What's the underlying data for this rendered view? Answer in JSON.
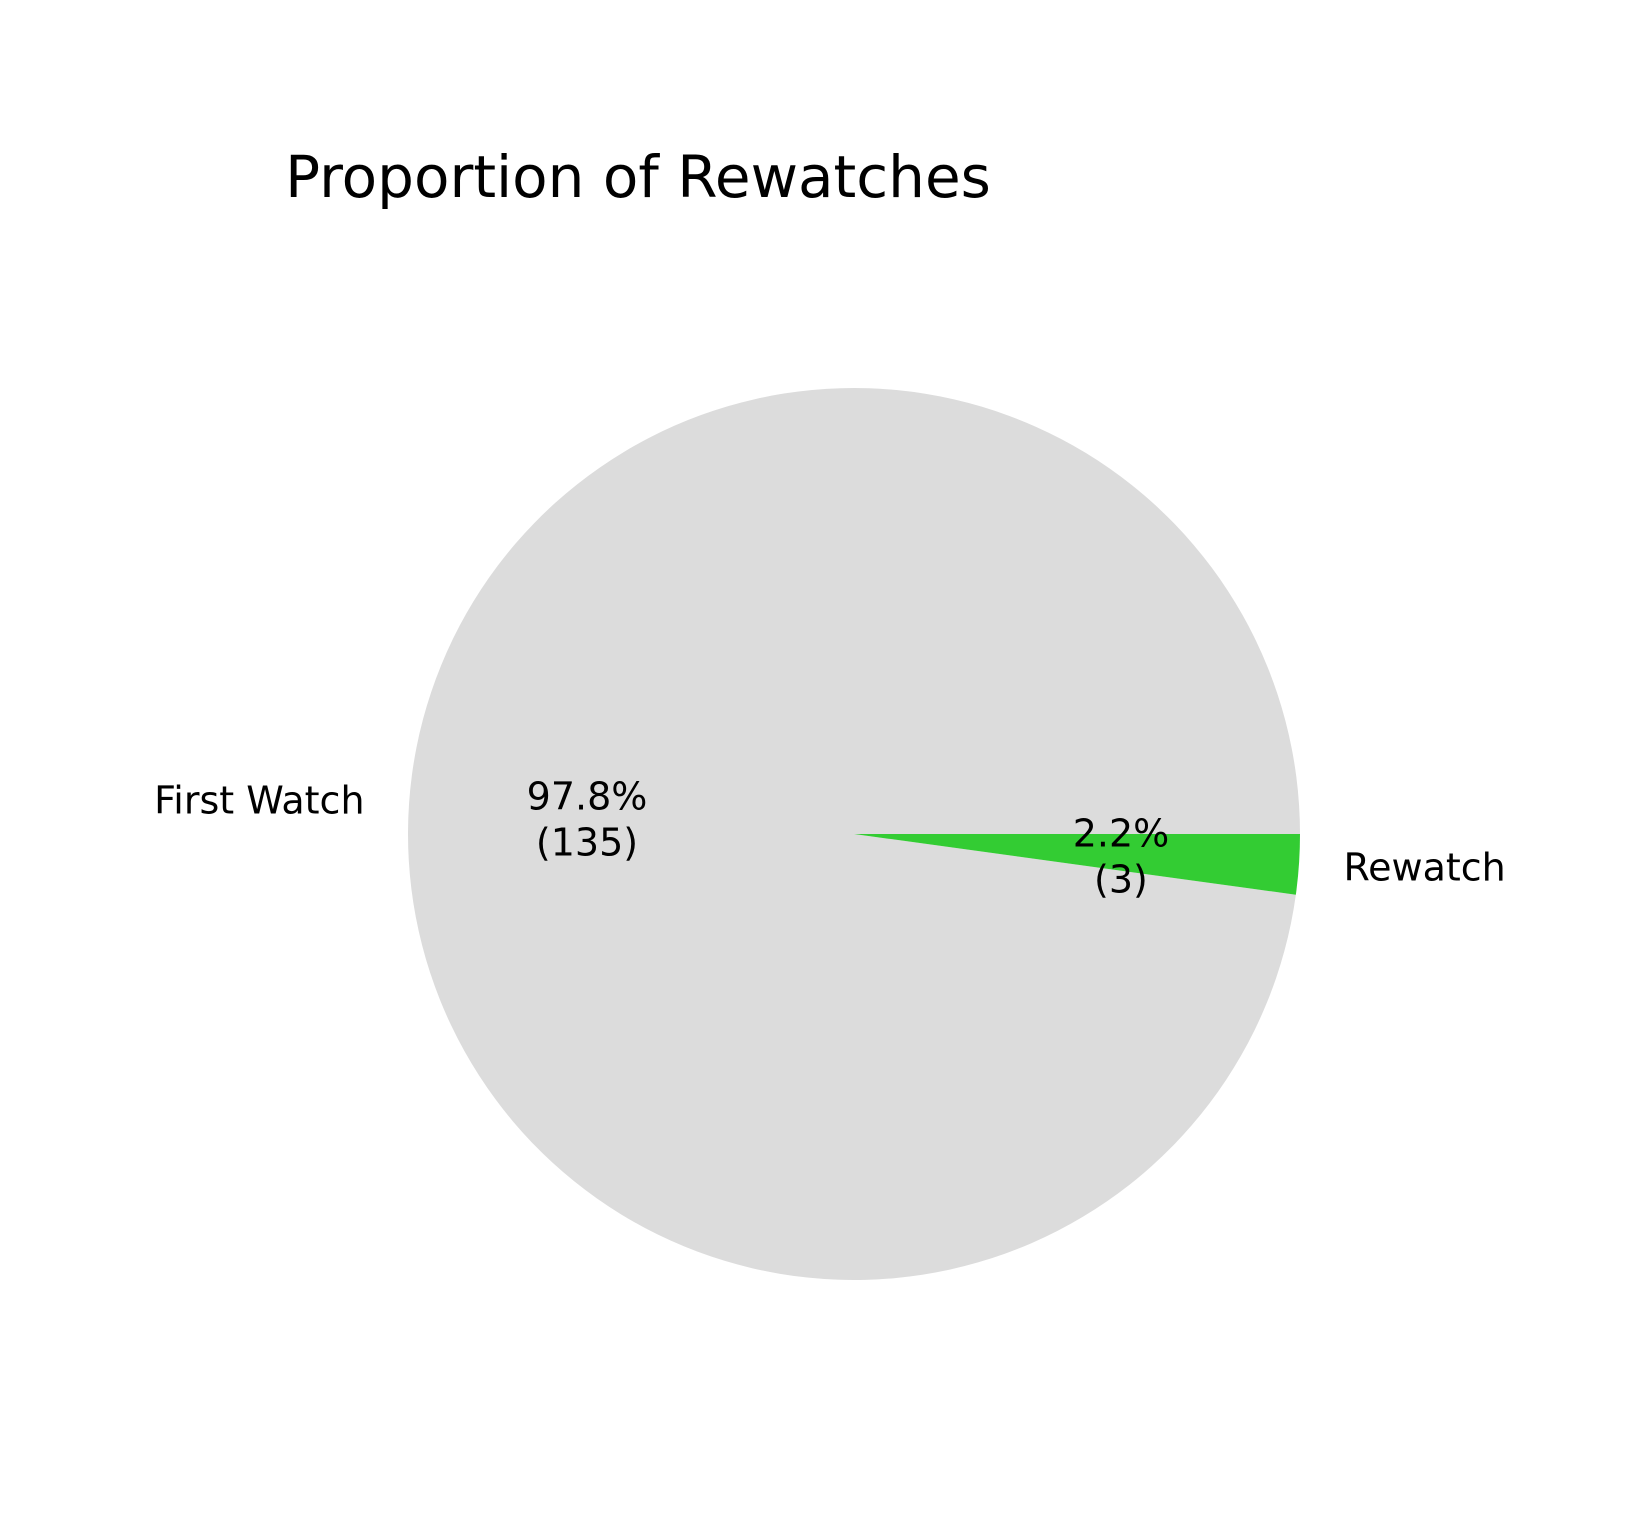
{
  "chart_data": {
    "type": "pie",
    "title": "Proportion of Rewatches",
    "slices": [
      {
        "label": "First Watch",
        "value": 135,
        "percent_label": "97.8%",
        "count_label": "(135)",
        "color": "#dcdcdc"
      },
      {
        "label": "Rewatch",
        "value": 3,
        "percent_label": "2.2%",
        "count_label": "(3)",
        "color": "#33cc33"
      }
    ],
    "start_angle_deg": 0,
    "direction": "counterclockwise"
  }
}
